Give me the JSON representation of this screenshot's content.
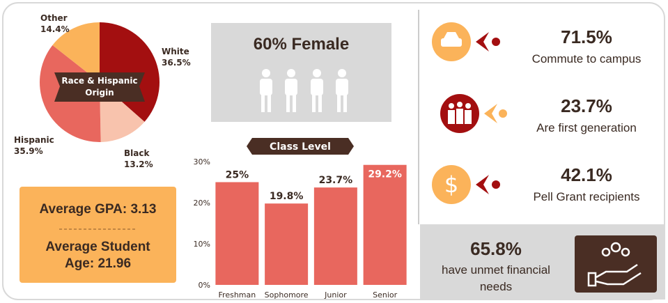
{
  "chart_data": [
    {
      "type": "pie",
      "title": "Race & Hispanic Origin",
      "categories": [
        "White",
        "Black",
        "Hispanic",
        "Other"
      ],
      "values": [
        36.5,
        13.2,
        35.9,
        14.4
      ],
      "value_labels": [
        "36.5%",
        "13.2%",
        "35.9%",
        "14.4%"
      ],
      "colors": [
        "#a30f10",
        "#f8c3ad",
        "#e8675e",
        "#fbb35a"
      ]
    },
    {
      "type": "bar",
      "title": "Class Level",
      "categories": [
        "Freshman",
        "Sophomore",
        "Junior",
        "Senior"
      ],
      "values": [
        25,
        19.8,
        23.7,
        29.2
      ],
      "value_labels": [
        "25%",
        "19.8%",
        "23.7%",
        "29.2%"
      ],
      "color": "#e8675e",
      "ylim": [
        0,
        30
      ],
      "yticks": [
        {
          "value": 0,
          "label": "0%"
        },
        {
          "value": 10,
          "label": "10%"
        },
        {
          "value": 20,
          "label": "20%"
        },
        {
          "value": 30,
          "label": "30%"
        }
      ]
    }
  ],
  "gpa": "Average GPA: 3.13",
  "age": "Average Student Age: 21.96",
  "female": "60% Female",
  "stats": [
    {
      "value": "71.5%",
      "label": "Commute to campus"
    },
    {
      "value": "23.7%",
      "label": "Are first generation"
    },
    {
      "value": "42.1%",
      "label": "Pell Grant recipients"
    }
  ],
  "unmet": {
    "value": "65.8%",
    "label": "have unmet financial needs"
  }
}
